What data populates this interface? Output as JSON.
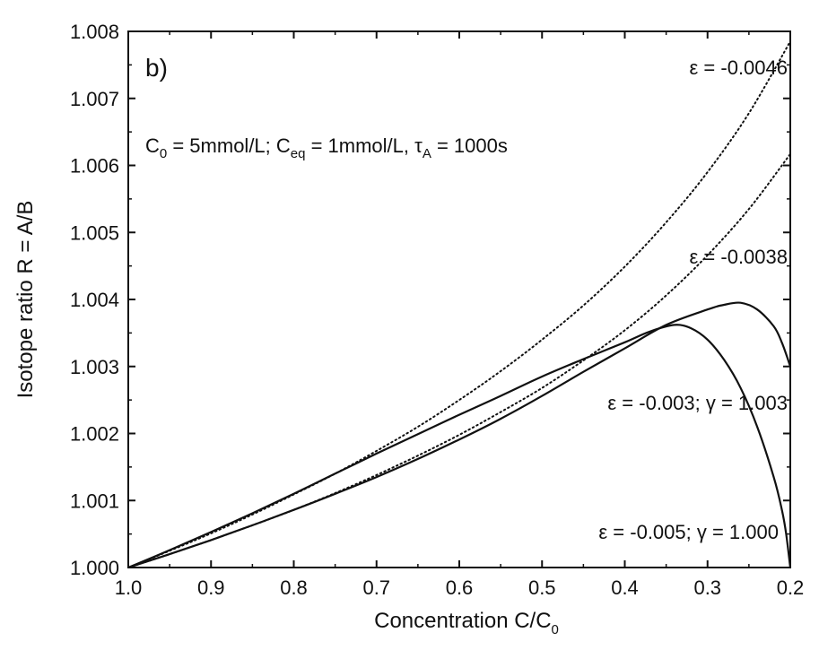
{
  "chart_data": {
    "type": "line",
    "panel_label": "b)",
    "xlabel": "Concentration  C/C",
    "xlabel_sub": "0",
    "ylabel": "Isotope ratio R = A/B",
    "xlim": [
      1.0,
      0.2
    ],
    "ylim": [
      1.0,
      1.008
    ],
    "x_reversed": true,
    "grid": false,
    "xticks": [
      "1.0",
      "0.9",
      "0.8",
      "0.7",
      "0.6",
      "0.5",
      "0.4",
      "0.3",
      "0.2"
    ],
    "yticks": [
      "1.000",
      "1.001",
      "1.002",
      "1.003",
      "1.004",
      "1.005",
      "1.006",
      "1.007",
      "1.008"
    ],
    "conditions": {
      "c0": "C",
      "c0_sub": "0",
      "c0_val": " = 5mmol/L; C",
      "ceq_sub": "eq",
      "ceq_val": " = 1mmol/L, τ",
      "tau_sub": "A",
      "tau_val": " = 1000s"
    },
    "annotations": {
      "eps_0046": "ε = -0.0046",
      "eps_0038": "ε = -0.0038",
      "eps_003": "ε = -0.003; γ = 1.003",
      "eps_005": "ε = -0.005; γ = 1.000"
    },
    "series": [
      {
        "style": "dotted",
        "x": [
          1.0,
          0.95,
          0.9,
          0.85,
          0.8,
          0.75,
          0.7,
          0.65,
          0.6,
          0.55,
          0.5,
          0.45,
          0.4,
          0.35,
          0.3,
          0.25,
          0.2
        ],
        "y": [
          1.0,
          1.00025,
          1.00051,
          1.00079,
          1.00109,
          1.0014,
          1.00174,
          1.0021,
          1.0025,
          1.00293,
          1.0034,
          1.00391,
          1.00449,
          1.00515,
          1.0059,
          1.00678,
          1.00785
        ]
      },
      {
        "style": "dotted",
        "x": [
          1.0,
          0.95,
          0.9,
          0.85,
          0.8,
          0.75,
          0.7,
          0.65,
          0.6,
          0.55,
          0.5,
          0.45,
          0.4,
          0.35,
          0.3,
          0.25,
          0.2
        ],
        "y": [
          1.0,
          1.0002,
          1.00041,
          1.00063,
          1.00086,
          1.00111,
          1.00138,
          1.00167,
          1.00198,
          1.00232,
          1.00268,
          1.00309,
          1.00354,
          1.00406,
          1.00466,
          1.00535,
          1.00617
        ]
      },
      {
        "style": "solid",
        "x": [
          1.0,
          0.95,
          0.9,
          0.85,
          0.8,
          0.75,
          0.7,
          0.65,
          0.6,
          0.55,
          0.5,
          0.45,
          0.4,
          0.37,
          0.34,
          0.32,
          0.3,
          0.28,
          0.26,
          0.24,
          0.22,
          0.21,
          0.205,
          0.2
        ],
        "y": [
          1.0,
          1.00026,
          1.00053,
          1.00081,
          1.0011,
          1.0014,
          1.0017,
          1.00199,
          1.00228,
          1.00256,
          1.00285,
          1.00311,
          1.00336,
          1.00352,
          1.00362,
          1.00357,
          1.0034,
          1.0031,
          1.00268,
          1.0021,
          1.00135,
          1.00085,
          1.0005,
          1.0
        ]
      },
      {
        "style": "solid",
        "x": [
          1.0,
          0.95,
          0.9,
          0.85,
          0.8,
          0.75,
          0.7,
          0.65,
          0.6,
          0.55,
          0.5,
          0.45,
          0.4,
          0.35,
          0.3,
          0.28,
          0.26,
          0.24,
          0.22,
          0.21,
          0.2
        ],
        "y": [
          1.0,
          1.0002,
          1.00041,
          1.00063,
          1.00086,
          1.0011,
          1.00135,
          1.00162,
          1.00191,
          1.00222,
          1.00256,
          1.00292,
          1.00327,
          1.00362,
          1.00385,
          1.00392,
          1.00395,
          1.00385,
          1.0036,
          1.00335,
          1.003
        ]
      }
    ]
  }
}
